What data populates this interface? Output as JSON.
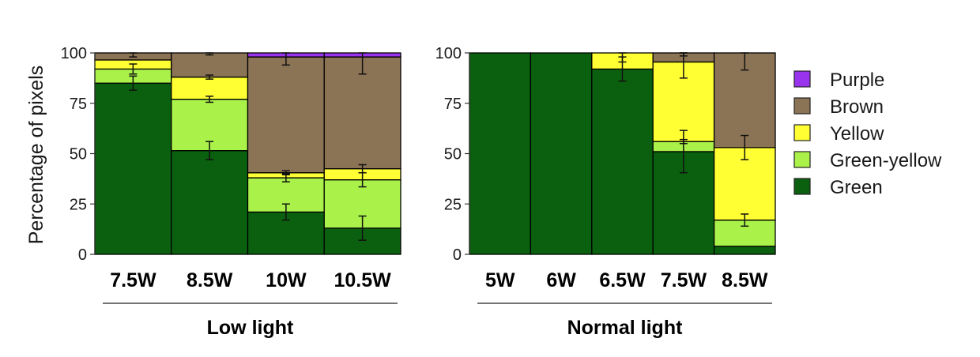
{
  "chart_data": {
    "type": "bar",
    "stacked": true,
    "ylabel": "Percentage of pixels",
    "ylim": [
      0,
      100
    ],
    "yticks": [
      "0",
      "25",
      "50",
      "75",
      "100"
    ],
    "grid": false,
    "legend_position": "right",
    "legend": [
      {
        "name": "Purple",
        "color": "#9933ee"
      },
      {
        "name": "Brown",
        "color": "#8b7355"
      },
      {
        "name": "Yellow",
        "color": "#ffff33"
      },
      {
        "name": "Green-yellow",
        "color": "#aaf24a"
      },
      {
        "name": "Green",
        "color": "#0b600f"
      }
    ],
    "panels": [
      {
        "group_label": "Low light",
        "categories": [
          "7.5W",
          "8.5W",
          "10W",
          "10.5W"
        ],
        "series": [
          {
            "name": "Green",
            "color": "#0b600f",
            "values": [
              85,
              51.5,
              21,
              13
            ],
            "errors": [
              3.5,
              4.5,
              4,
              6
            ]
          },
          {
            "name": "Green-yellow",
            "color": "#aaf24a",
            "values": [
              7,
              25.5,
              17,
              24
            ],
            "errors": [
              2.5,
              1.5,
              2,
              3.5
            ]
          },
          {
            "name": "Yellow",
            "color": "#ffff33",
            "values": [
              4.5,
              11,
              2.5,
              5.5
            ],
            "errors": [
              0,
              1,
              1,
              2
            ]
          },
          {
            "name": "Brown",
            "color": "#8b7355",
            "values": [
              3.5,
              12,
              57.5,
              55.5
            ],
            "errors": [
              2,
              1,
              4,
              8.5
            ]
          },
          {
            "name": "Purple",
            "color": "#9933ee",
            "values": [
              0,
              0,
              2,
              2
            ],
            "errors": [
              0,
              0,
              0,
              0
            ]
          }
        ]
      },
      {
        "group_label": "Normal light",
        "categories": [
          "5W",
          "6W",
          "6.5W",
          "7.5W",
          "8.5W"
        ],
        "series": [
          {
            "name": "Green",
            "color": "#0b600f",
            "values": [
              100,
              100,
              92,
              51,
              4
            ],
            "errors": [
              0,
              0,
              6,
              10.5,
              0
            ]
          },
          {
            "name": "Green-yellow",
            "color": "#aaf24a",
            "values": [
              0,
              0,
              0,
              5,
              13
            ],
            "errors": [
              0,
              0,
              0,
              1,
              3
            ]
          },
          {
            "name": "Yellow",
            "color": "#ffff33",
            "values": [
              0,
              0,
              8,
              39.5,
              36
            ],
            "errors": [
              0,
              0,
              4.5,
              8,
              6
            ]
          },
          {
            "name": "Brown",
            "color": "#8b7355",
            "values": [
              0,
              0,
              0,
              4.5,
              47
            ],
            "errors": [
              0,
              0,
              0,
              1.5,
              8.5
            ]
          },
          {
            "name": "Purple",
            "color": "#9933ee",
            "values": [
              0,
              0,
              0,
              0,
              0
            ],
            "errors": [
              0,
              0,
              0,
              0,
              0
            ]
          }
        ]
      }
    ]
  }
}
